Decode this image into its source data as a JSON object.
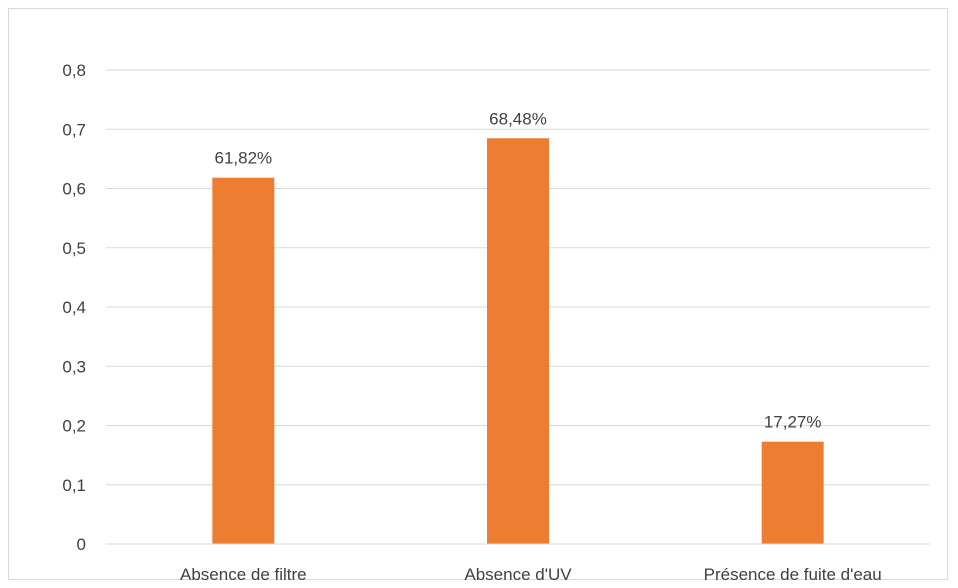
{
  "chart_data": {
    "type": "bar",
    "title": "",
    "xlabel": "",
    "ylabel": "",
    "categories": [
      "Absence de filtre",
      "Absence d'UV",
      "Présence de fuite d'eau"
    ],
    "values": [
      0.6182,
      0.6848,
      0.1727
    ],
    "data_labels": [
      "61,82%",
      "68,48%",
      "17,27%"
    ],
    "ylim": [
      0,
      0.8
    ],
    "yticks": [
      0,
      0.1,
      0.2,
      0.3,
      0.4,
      0.5,
      0.6,
      0.7,
      0.8
    ],
    "ytick_labels": [
      "0",
      "0,1",
      "0,2",
      "0,3",
      "0,4",
      "0,5",
      "0,6",
      "0,7",
      "0,8"
    ],
    "grid": true,
    "legend": "none",
    "colors": {
      "bar": "#ED7D31",
      "grid": "#d9d9d9",
      "axis": "#d9d9d9",
      "text": "#404040"
    }
  }
}
